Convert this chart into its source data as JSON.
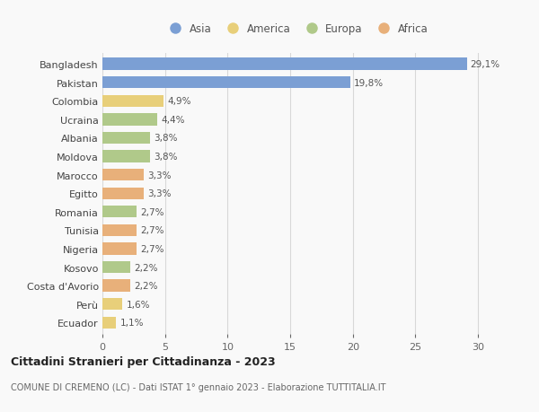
{
  "countries": [
    "Bangladesh",
    "Pakistan",
    "Colombia",
    "Ucraina",
    "Albania",
    "Moldova",
    "Marocco",
    "Egitto",
    "Romania",
    "Tunisia",
    "Nigeria",
    "Kosovo",
    "Costa d'Avorio",
    "Perù",
    "Ecuador"
  ],
  "values": [
    29.1,
    19.8,
    4.9,
    4.4,
    3.8,
    3.8,
    3.3,
    3.3,
    2.7,
    2.7,
    2.7,
    2.2,
    2.2,
    1.6,
    1.1
  ],
  "labels": [
    "29,1%",
    "19,8%",
    "4,9%",
    "4,4%",
    "3,8%",
    "3,8%",
    "3,3%",
    "3,3%",
    "2,7%",
    "2,7%",
    "2,7%",
    "2,2%",
    "2,2%",
    "1,6%",
    "1,1%"
  ],
  "continents": [
    "Asia",
    "Asia",
    "America",
    "Europa",
    "Europa",
    "Europa",
    "Africa",
    "Africa",
    "Europa",
    "Africa",
    "Africa",
    "Europa",
    "Africa",
    "America",
    "America"
  ],
  "colors": {
    "Asia": "#7b9fd4",
    "America": "#e8cf7a",
    "Europa": "#b0c98a",
    "Africa": "#e8b07a"
  },
  "legend_order": [
    "Asia",
    "America",
    "Europa",
    "Africa"
  ],
  "xlim": [
    0,
    31
  ],
  "xticks": [
    0,
    5,
    10,
    15,
    20,
    25,
    30
  ],
  "title": "Cittadini Stranieri per Cittadinanza - 2023",
  "subtitle": "COMUNE DI CREMENO (LC) - Dati ISTAT 1° gennaio 2023 - Elaborazione TUTTITALIA.IT",
  "background_color": "#f9f9f9",
  "grid_color": "#d8d8d8"
}
